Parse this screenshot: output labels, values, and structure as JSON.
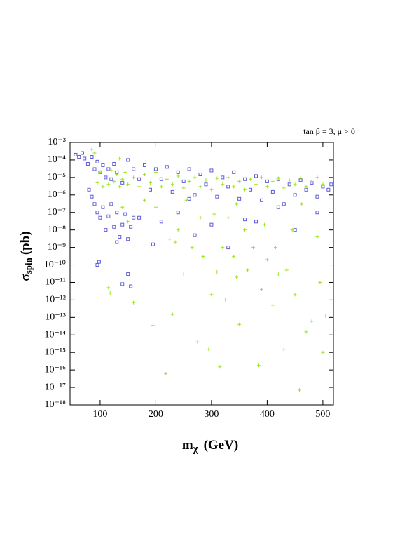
{
  "chart_data": {
    "type": "scatter",
    "annotation": "tan β = 3, μ > 0",
    "x_label": "m",
    "x_label_sub": "χ",
    "x_label_unit": "(GeV)",
    "y_label": "σ",
    "y_label_sub": "spin",
    "y_label_unit": "(pb)",
    "xlim": [
      46,
      519
    ],
    "ylim": [
      1e-18,
      0.001
    ],
    "log_y": true,
    "xticks": [
      100,
      200,
      300,
      400,
      500
    ],
    "yticks": [
      {
        "value": 1e-18,
        "label": "10⁻¹⁸"
      },
      {
        "value": 1e-17,
        "label": "10⁻¹⁷"
      },
      {
        "value": 1e-16,
        "label": "10⁻¹⁶"
      },
      {
        "value": 1e-15,
        "label": "10⁻¹⁵"
      },
      {
        "value": 1e-14,
        "label": "10⁻¹⁴"
      },
      {
        "value": 1e-13,
        "label": "10⁻¹³"
      },
      {
        "value": 1e-12,
        "label": "10⁻¹²"
      },
      {
        "value": 1e-11,
        "label": "10⁻¹¹"
      },
      {
        "value": 1e-10,
        "label": "10⁻¹⁰"
      },
      {
        "value": 1e-09,
        "label": "10⁻⁹"
      },
      {
        "value": 1e-08,
        "label": "10⁻⁸"
      },
      {
        "value": 1e-07,
        "label": "10⁻⁷"
      },
      {
        "value": 1e-06,
        "label": "10⁻⁶"
      },
      {
        "value": 1e-05,
        "label": "10⁻⁵"
      },
      {
        "value": 0.0001,
        "label": "10⁻⁴"
      },
      {
        "value": 0.001,
        "label": "10⁻³"
      }
    ],
    "series": [
      {
        "color": "#5c5cd6",
        "marker": "square",
        "x": [
          56,
          62,
          68,
          72,
          78,
          85,
          90,
          95,
          100,
          105,
          110,
          115,
          120,
          125,
          130,
          140,
          150,
          160,
          170,
          180,
          190,
          200,
          210,
          220,
          230,
          240,
          250,
          260,
          270,
          280,
          290,
          300,
          310,
          320,
          330,
          340,
          350,
          360,
          370,
          380,
          390,
          400,
          410,
          420,
          430,
          440,
          450,
          460,
          470,
          480,
          490,
          500,
          510,
          515,
          80,
          85,
          90,
          95,
          100,
          105,
          110,
          115,
          120,
          125,
          130,
          135,
          140,
          145,
          150,
          155,
          160,
          95,
          98,
          150,
          140,
          155,
          130,
          170,
          210,
          240,
          270,
          300,
          330,
          360,
          420,
          380,
          450,
          195,
          260,
          490
        ],
        "y": [
          0.0002,
          0.00015,
          0.00025,
          0.00012,
          6e-05,
          0.00015,
          3e-05,
          8e-05,
          2e-05,
          5e-05,
          1e-05,
          3e-05,
          8e-06,
          6e-05,
          2e-05,
          5e-06,
          0.0001,
          3e-05,
          8e-06,
          5e-05,
          2e-06,
          3e-05,
          8e-06,
          4e-05,
          1.5e-06,
          2e-05,
          6e-06,
          3e-05,
          1e-06,
          1.5e-05,
          4e-06,
          2.5e-05,
          8e-07,
          1e-05,
          3e-06,
          2e-05,
          6e-07,
          8e-06,
          2e-06,
          1.2e-05,
          5e-07,
          6e-06,
          1.5e-06,
          8e-06,
          3e-07,
          4e-06,
          1e-06,
          7e-06,
          2e-06,
          5e-06,
          8e-07,
          3e-06,
          2e-06,
          4e-06,
          2e-06,
          8e-07,
          3e-07,
          1e-07,
          5e-08,
          2e-07,
          1e-08,
          6e-08,
          3e-07,
          1.5e-08,
          1e-07,
          4e-09,
          2e-08,
          8e-08,
          3e-09,
          1.5e-08,
          5e-08,
          1e-10,
          1.5e-10,
          3e-11,
          8e-12,
          6e-12,
          2e-09,
          5e-08,
          3e-08,
          1e-07,
          5e-09,
          2e-08,
          1e-09,
          4e-08,
          2e-07,
          3e-08,
          1e-08,
          1.5e-09,
          6e-07,
          1e-07
        ]
      },
      {
        "color": "#99e619",
        "marker": "plus",
        "x": [
          95,
          100,
          105,
          110,
          115,
          120,
          125,
          130,
          135,
          140,
          145,
          150,
          160,
          170,
          180,
          190,
          200,
          210,
          220,
          230,
          240,
          250,
          260,
          270,
          280,
          290,
          300,
          310,
          320,
          330,
          340,
          350,
          360,
          370,
          380,
          390,
          400,
          410,
          420,
          430,
          440,
          450,
          460,
          470,
          480,
          490,
          500,
          85,
          90,
          135,
          150,
          160,
          115,
          118,
          195,
          218,
          230,
          235,
          240,
          250,
          255,
          265,
          275,
          280,
          285,
          295,
          300,
          305,
          310,
          315,
          320,
          325,
          330,
          340,
          345,
          350,
          360,
          365,
          375,
          385,
          390,
          395,
          400,
          410,
          415,
          420,
          430,
          435,
          445,
          450,
          458,
          462,
          470,
          480,
          490,
          495,
          500,
          505,
          200,
          180,
          225,
          345,
          140
        ],
        "y": [
          5e-06,
          2e-05,
          3e-06,
          1e-05,
          4e-06,
          2.5e-05,
          6e-06,
          1.5e-05,
          3e-06,
          8e-06,
          2e-05,
          4e-06,
          1e-05,
          3e-06,
          1.5e-05,
          5e-06,
          2e-05,
          3e-06,
          8e-06,
          4e-06,
          1.2e-05,
          2.5e-06,
          6e-06,
          1e-05,
          3e-06,
          7e-06,
          2e-06,
          9e-06,
          4e-06,
          1e-05,
          3e-06,
          6e-06,
          2e-06,
          8e-06,
          4e-06,
          1e-05,
          3e-06,
          6e-06,
          9e-06,
          2.5e-06,
          7e-06,
          4e-06,
          9e-06,
          3e-06,
          6e-06,
          1e-05,
          4e-06,
          0.0004,
          0.00025,
          0.00012,
          3e-08,
          7e-13,
          5e-12,
          2.5e-12,
          3.5e-14,
          6e-17,
          1.5e-13,
          2e-09,
          1e-08,
          3e-11,
          5e-07,
          1e-09,
          4e-15,
          5e-08,
          3e-10,
          1.5e-15,
          2e-12,
          8e-08,
          4e-11,
          1.5e-16,
          1e-09,
          1e-12,
          5e-08,
          3e-10,
          2e-11,
          4e-14,
          1e-08,
          5e-11,
          1e-09,
          1.8e-16,
          4e-12,
          2e-08,
          2e-10,
          5e-13,
          1e-09,
          3e-11,
          1.5e-15,
          5e-11,
          1e-08,
          2e-12,
          7e-18,
          3e-07,
          1.5e-14,
          6e-14,
          4e-09,
          1e-11,
          1e-15,
          1.2e-13,
          2e-07,
          5e-07,
          3e-09,
          3e-07,
          2e-07
        ]
      }
    ]
  }
}
